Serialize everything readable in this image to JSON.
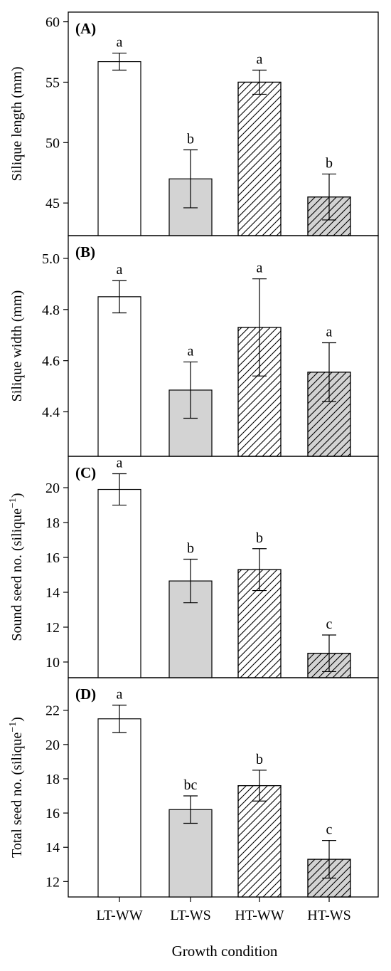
{
  "figure": {
    "xlabel": "Growth condition",
    "categories": [
      "LT-WW",
      "LT-WS",
      "HT-WW",
      "HT-WS"
    ]
  },
  "styles": {
    "LT-WW": {
      "fill": "#ffffff",
      "hatch": false
    },
    "LT-WS": {
      "fill": "#d3d3d3",
      "hatch": false
    },
    "HT-WW": {
      "fill": "#ffffff",
      "hatch": true
    },
    "HT-WS": {
      "fill": "#d3d3d3",
      "hatch": true
    }
  },
  "chart_data": [
    {
      "type": "bar",
      "panel": "(A)",
      "ylabel": "Silique length (mm)",
      "categories": [
        "LT-WW",
        "LT-WS",
        "HT-WW",
        "HT-WS"
      ],
      "values": [
        56.7,
        47.0,
        55.0,
        45.5
      ],
      "errors": [
        0.7,
        2.4,
        1.0,
        1.9
      ],
      "letters": [
        "a",
        "b",
        "a",
        "b"
      ],
      "ylim": [
        42.3,
        60.8
      ],
      "yticks": [
        45,
        50,
        55,
        60
      ],
      "ytick_labels": [
        "45",
        "50",
        "55",
        "60"
      ]
    },
    {
      "type": "bar",
      "panel": "(B)",
      "ylabel": "Silique width (mm)",
      "categories": [
        "LT-WW",
        "LT-WS",
        "HT-WW",
        "HT-WS"
      ],
      "values": [
        4.85,
        4.485,
        4.73,
        4.555
      ],
      "errors": [
        0.063,
        0.11,
        0.19,
        0.115
      ],
      "letters": [
        "a",
        "a",
        "a",
        "a"
      ],
      "ylim": [
        4.226,
        5.089
      ],
      "yticks": [
        4.4,
        4.6,
        4.8,
        5.0
      ],
      "ytick_labels": [
        "4.4",
        "4.6",
        "4.8",
        "5.0"
      ]
    },
    {
      "type": "bar",
      "panel": "(C)",
      "ylabel": "Sound seed no. (silique",
      "ylabel_sup": "−1",
      "ylabel_end": ")",
      "categories": [
        "LT-WW",
        "LT-WS",
        "HT-WW",
        "HT-WS"
      ],
      "values": [
        19.9,
        14.65,
        15.3,
        10.5
      ],
      "errors": [
        0.9,
        1.25,
        1.2,
        1.05
      ],
      "letters": [
        "a",
        "b",
        "b",
        "c"
      ],
      "ylim": [
        9.1,
        21.8
      ],
      "yticks": [
        10,
        12,
        14,
        16,
        18,
        20
      ],
      "ytick_labels": [
        "10",
        "12",
        "14",
        "16",
        "18",
        "20"
      ]
    },
    {
      "type": "bar",
      "panel": "(D)",
      "ylabel": "Total seed no. (silique",
      "ylabel_sup": "−1",
      "ylabel_end": ")",
      "categories": [
        "LT-WW",
        "LT-WS",
        "HT-WW",
        "HT-WS"
      ],
      "values": [
        21.5,
        16.2,
        17.6,
        13.3
      ],
      "errors": [
        0.8,
        0.8,
        0.9,
        1.1
      ],
      "letters": [
        "a",
        "bc",
        "b",
        "c"
      ],
      "ylim": [
        11.1,
        23.9
      ],
      "yticks": [
        12,
        14,
        16,
        18,
        20,
        22
      ],
      "ytick_labels": [
        "12",
        "14",
        "16",
        "18",
        "20",
        "22"
      ]
    }
  ]
}
